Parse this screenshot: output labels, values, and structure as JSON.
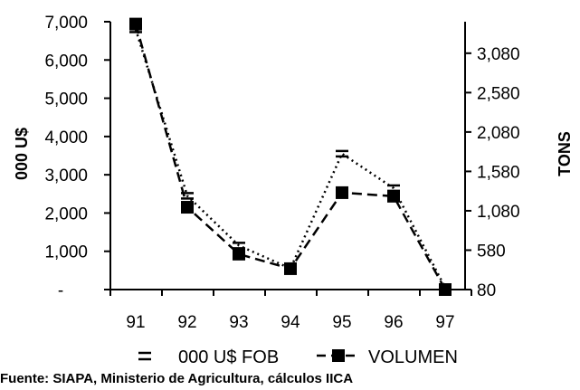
{
  "chart_data": {
    "type": "line",
    "title": "",
    "categories": [
      "91",
      "92",
      "93",
      "94",
      "95",
      "96",
      "97"
    ],
    "y_left": {
      "label": "000 U$",
      "ticks": [
        "7,000",
        "6,000",
        "5,000",
        "4,000",
        "3,000",
        "2,000",
        "1,000",
        "-"
      ],
      "range": [
        0,
        7000
      ]
    },
    "y_right": {
      "label": "TONS",
      "ticks": [
        "3,080",
        "2,580",
        "2,080",
        "1,580",
        "1,080",
        "580",
        "80"
      ],
      "range": [
        80,
        3480
      ]
    },
    "series": [
      {
        "name": "000 U$ FOB",
        "axis": "left",
        "style": "dotted",
        "marker": "dash",
        "values": [
          6800,
          2450,
          1150,
          550,
          3550,
          2650,
          50
        ]
      },
      {
        "name": "VOLUMEN",
        "axis": "right",
        "style": "dashed",
        "marker": "square",
        "values": [
          3450,
          1125,
          530,
          345,
          1310,
          1265,
          80
        ]
      }
    ],
    "legend": "bottom",
    "grid": false
  },
  "source_note": "Fuente: SIAPA, Ministerio de Agricultura, cálculos IICA"
}
